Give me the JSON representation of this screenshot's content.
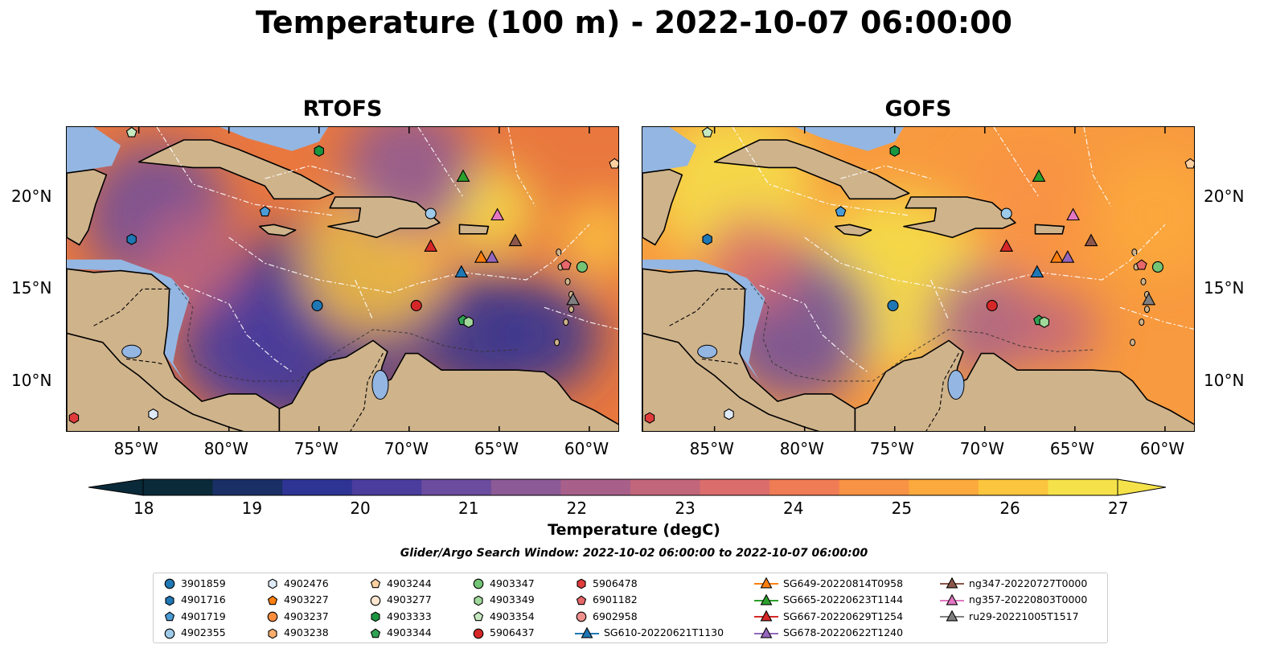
{
  "title": "Temperature (100 m) - 2022-10-07 06:00:00",
  "panels": [
    {
      "id": "rtofs",
      "title": "RTOFS"
    },
    {
      "id": "gofs",
      "title": "GOFS"
    }
  ],
  "axes": {
    "lon_ticks": [
      "85°W",
      "80°W",
      "75°W",
      "70°W",
      "65°W",
      "60°W"
    ],
    "lat_ticks": [
      "20°N",
      "15°N",
      "10°N"
    ],
    "lon_range": [
      -89,
      -58.3
    ],
    "lat_range": [
      7.2,
      23.8
    ]
  },
  "colorbar": {
    "label": "Temperature (degC)",
    "ticks": [
      "18",
      "19",
      "20",
      "21",
      "22",
      "23",
      "24",
      "25",
      "26",
      "27"
    ],
    "range": [
      18,
      27
    ],
    "colors": [
      "#0a2a3a",
      "#1a2f66",
      "#2e3493",
      "#4a3d9e",
      "#6b4c9e",
      "#8c5a96",
      "#a8608a",
      "#c2667c",
      "#db6e6c",
      "#ef7c55",
      "#f89245",
      "#fca93d",
      "#fcc53e",
      "#f5e24a"
    ],
    "extend": "both"
  },
  "search_window": "Glider/Argo Search Window: 2022-10-02 06:00:00 to 2022-10-07 06:00:00",
  "legend": [
    {
      "label": "3901859",
      "marker": "circle",
      "color": "#1f77b4"
    },
    {
      "label": "4901716",
      "marker": "hexagon",
      "color": "#1f77b4"
    },
    {
      "label": "4901719",
      "marker": "pentagon",
      "color": "#4a9bd6"
    },
    {
      "label": "4902355",
      "marker": "circle",
      "color": "#9ecae9"
    },
    {
      "label": "4902476",
      "marker": "hexagon",
      "color": "#deebf7"
    },
    {
      "label": "4903227",
      "marker": "pentagon",
      "color": "#ff7f0e"
    },
    {
      "label": "4903237",
      "marker": "circle",
      "color": "#fd8d3c"
    },
    {
      "label": "4903238",
      "marker": "hexagon",
      "color": "#fdae6b"
    },
    {
      "label": "4903244",
      "marker": "pentagon",
      "color": "#fdd0a2"
    },
    {
      "label": "4903277",
      "marker": "circle",
      "color": "#fee6ce"
    },
    {
      "label": "4903333",
      "marker": "hexagon",
      "color": "#1a9641"
    },
    {
      "label": "4903344",
      "marker": "pentagon",
      "color": "#31a354"
    },
    {
      "label": "4903347",
      "marker": "circle",
      "color": "#74c476"
    },
    {
      "label": "4903349",
      "marker": "hexagon",
      "color": "#a1d99b"
    },
    {
      "label": "4903354",
      "marker": "pentagon",
      "color": "#c7e9c0"
    },
    {
      "label": "5906437",
      "marker": "circle",
      "color": "#d62728"
    },
    {
      "label": "5906478",
      "marker": "hexagon",
      "color": "#e03c3c"
    },
    {
      "label": "6901182",
      "marker": "pentagon",
      "color": "#e8676a"
    },
    {
      "label": "6902958",
      "marker": "circle",
      "color": "#f0908e"
    },
    {
      "label": "SG610-20220621T1130",
      "marker": "triangle-line",
      "color": "#1f77b4"
    },
    {
      "label": "SG649-20220814T0958",
      "marker": "triangle-line",
      "color": "#ff7f0e"
    },
    {
      "label": "SG665-20220623T1144",
      "marker": "triangle-line",
      "color": "#2ca02c"
    },
    {
      "label": "SG667-20220629T1254",
      "marker": "triangle-line",
      "color": "#d62728"
    },
    {
      "label": "SG678-20220622T1240",
      "marker": "triangle-line",
      "color": "#9467bd"
    },
    {
      "label": "ng347-20220727T0000",
      "marker": "triangle-line",
      "color": "#8c564b"
    },
    {
      "label": "ng357-20220803T0000",
      "marker": "triangle-line",
      "color": "#e377c2"
    },
    {
      "label": "ru29-20221005T1517",
      "marker": "triangle-line",
      "color": "#7f7f7f"
    }
  ],
  "observations": [
    {
      "id": "4903354",
      "marker": "pentagon",
      "color": "#c7e9c0",
      "lon": -85.4,
      "lat": 23.5
    },
    {
      "id": "4903333",
      "marker": "hexagon",
      "color": "#1a9641",
      "lon": -75.0,
      "lat": 22.5
    },
    {
      "id": "4903244",
      "marker": "pentagon",
      "color": "#fdd0a2",
      "lon": -58.6,
      "lat": 21.8
    },
    {
      "id": "4901719",
      "marker": "pentagon",
      "color": "#4a9bd6",
      "lon": -78.0,
      "lat": 19.2
    },
    {
      "id": "4902355",
      "marker": "circle",
      "color": "#9ecae9",
      "lon": -68.8,
      "lat": 19.1
    },
    {
      "id": "4901716",
      "marker": "hexagon",
      "color": "#1f77b4",
      "lon": -85.4,
      "lat": 17.7
    },
    {
      "id": "4903347",
      "marker": "circle",
      "color": "#74c476",
      "lon": -60.4,
      "lat": 16.2
    },
    {
      "id": "6901182",
      "marker": "pentagon",
      "color": "#e8676a",
      "lon": -61.3,
      "lat": 16.3
    },
    {
      "id": "3901859",
      "marker": "circle",
      "color": "#1f77b4",
      "lon": -75.1,
      "lat": 14.1
    },
    {
      "id": "5906437",
      "marker": "circle",
      "color": "#d62728",
      "lon": -69.6,
      "lat": 14.1
    },
    {
      "id": "4903344",
      "marker": "pentagon",
      "color": "#31a354",
      "lon": -67.0,
      "lat": 13.3
    },
    {
      "id": "4903349",
      "marker": "hexagon",
      "color": "#a1d99b",
      "lon": -66.7,
      "lat": 13.2
    },
    {
      "id": "5906478",
      "marker": "hexagon",
      "color": "#e03c3c",
      "lon": -88.6,
      "lat": 8.0
    },
    {
      "id": "4902476",
      "marker": "hexagon",
      "color": "#deebf7",
      "lon": -84.2,
      "lat": 8.2
    },
    {
      "id": "SG665-20220623T1144",
      "marker": "triangle",
      "color": "#2ca02c",
      "lon": -67.0,
      "lat": 21.1
    },
    {
      "id": "ng357-20220803T0000",
      "marker": "triangle",
      "color": "#e377c2",
      "lon": -65.1,
      "lat": 19.0
    },
    {
      "id": "ng347-20220727T0000",
      "marker": "triangle",
      "color": "#8c564b",
      "lon": -64.1,
      "lat": 17.6
    },
    {
      "id": "SG667-20220629T1254",
      "marker": "triangle",
      "color": "#d62728",
      "lon": -68.8,
      "lat": 17.3
    },
    {
      "id": "SG649-20220814T0958",
      "marker": "triangle",
      "color": "#ff7f0e",
      "lon": -66.0,
      "lat": 16.7
    },
    {
      "id": "SG678-20220622T1240",
      "marker": "triangle",
      "color": "#9467bd",
      "lon": -65.4,
      "lat": 16.7
    },
    {
      "id": "SG610-20220621T1130",
      "marker": "triangle",
      "color": "#1f77b4",
      "lon": -67.1,
      "lat": 15.9
    },
    {
      "id": "ru29-20221005T1517",
      "marker": "triangle",
      "color": "#7f7f7f",
      "lon": -60.9,
      "lat": 14.4
    }
  ]
}
